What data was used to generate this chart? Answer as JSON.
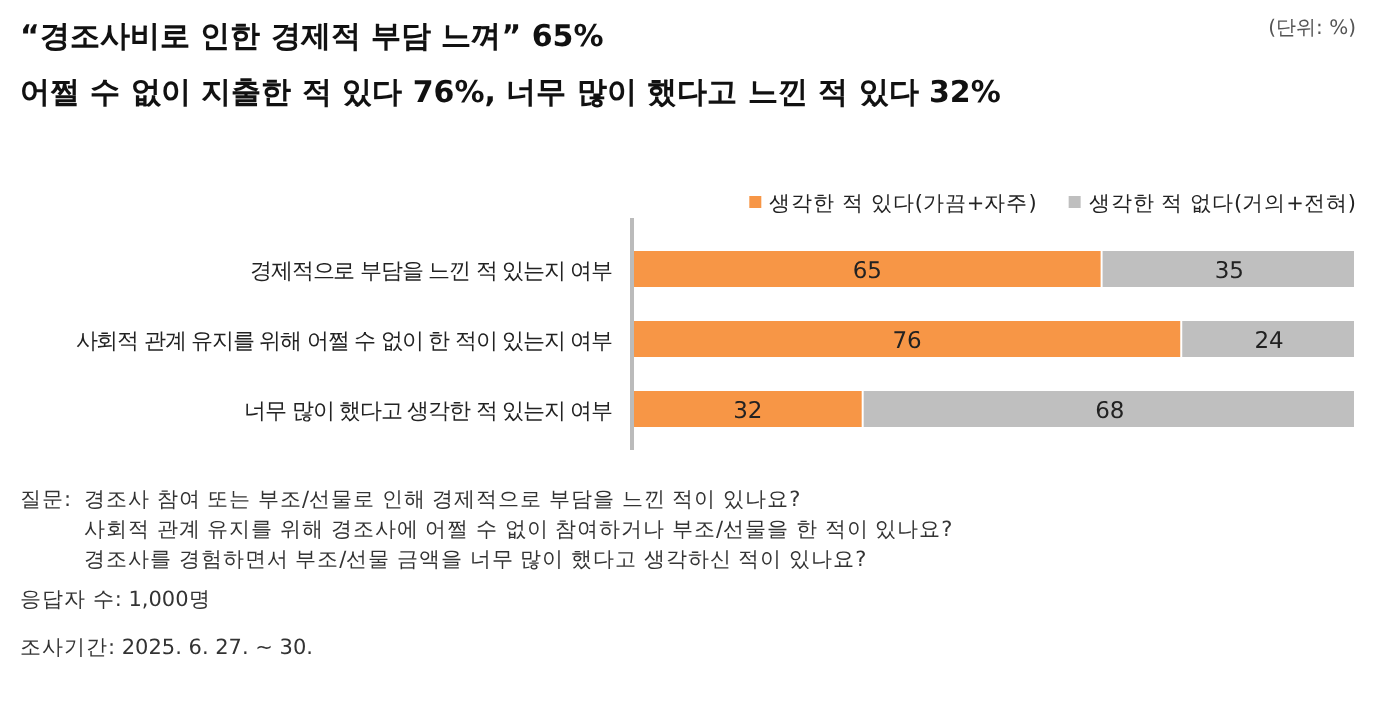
{
  "chart_data": {
    "type": "bar",
    "orientation": "horizontal",
    "stacked": true,
    "data_labels": true,
    "legend": "top right",
    "title": "“경조사비로 인한 경제적 부담 느껴” 65%",
    "subtitle": "어쩔 수 없이 지출한 적 있다 76%, 너무 많이 했다고 느낀 적 있다 32%",
    "categories": [
      "경제적으로 부담을 느낀 적 있는지 여부",
      "사회적 관계 유지를 위해 어쩔 수 없이 한 적이 있는지 여부",
      "너무 많이 했다고 생각한 적 있는지 여부"
    ],
    "series": [
      {
        "name": "생각한 적 있다(가끔+자주)",
        "color": "#f79646",
        "values": [
          65,
          76,
          32
        ]
      },
      {
        "name": "생각한 적 없다(거의+전혀)",
        "color": "#bfbfbf",
        "values": [
          35,
          24,
          68
        ]
      }
    ],
    "annotations": [
      "(단위: %)",
      "질문:",
      "경조사 참여 또는 부조/선물로 인해 경제적으로 부담을 느낀 적이 있나요?",
      "사회적 관계 유지를 위해 경조사에 어쩔 수 없이 참여하거나 부조/선물을 한 적이 있나요?",
      "경조사를 경험하면서 부조/선물 금액을 너무 많이 했다고 생각하신 적이 있나요?",
      "응답자 수: 1,000명",
      "조사기간: 2025. 6. 27. ~ 30."
    ]
  }
}
